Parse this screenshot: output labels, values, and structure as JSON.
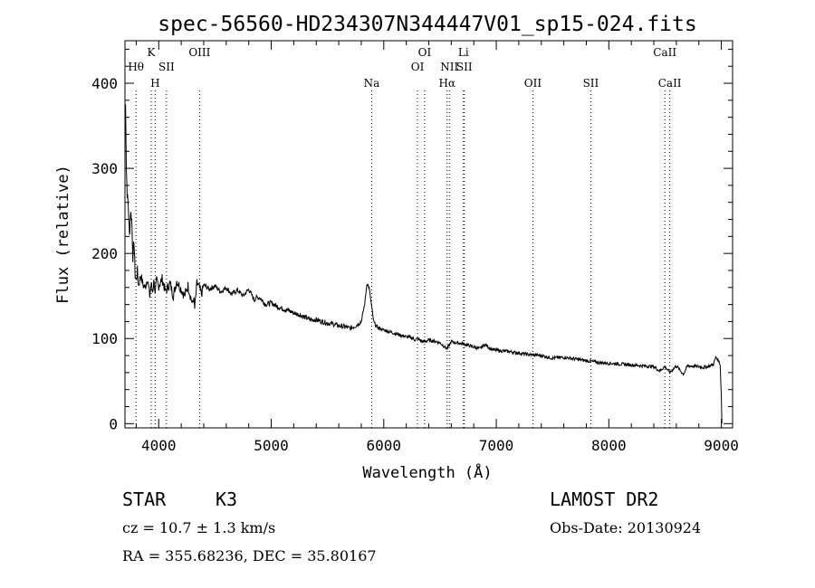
{
  "chart_data": {
    "type": "line",
    "title": "spec-56560-HD234307N344447V01_sp15-024.fits",
    "xlabel": "Wavelength (Å)",
    "ylabel": "Flux (relative)",
    "xlim": [
      3700,
      9100
    ],
    "ylim": [
      -5,
      450
    ],
    "xticks": [
      4000,
      5000,
      6000,
      7000,
      8000,
      9000
    ],
    "yticks": [
      0,
      100,
      200,
      300,
      400
    ],
    "grid": false,
    "series": [
      {
        "x": [
          3700,
          3705,
          3712,
          3720,
          3730,
          3740,
          3750,
          3760,
          3770,
          3780,
          3790,
          3800,
          3810,
          3820,
          3840,
          3860,
          3880,
          3900,
          3920,
          3933,
          3945,
          3960,
          3968,
          3980,
          4000,
          4030,
          4060,
          4100,
          4130,
          4160,
          4200,
          4230,
          4260,
          4300,
          4310,
          4320,
          4340,
          4360,
          4380,
          4400,
          4450,
          4500,
          4550,
          4600,
          4650,
          4700,
          4750,
          4800,
          4850,
          4861,
          4900,
          4950,
          5000,
          5050,
          5100,
          5150,
          5200,
          5250,
          5300,
          5350,
          5400,
          5450,
          5500,
          5550,
          5600,
          5650,
          5700,
          5750,
          5800,
          5830,
          5850,
          5870,
          5890,
          5910,
          5930,
          5960,
          6000,
          6050,
          6100,
          6150,
          6200,
          6250,
          6280,
          6300,
          6350,
          6400,
          6450,
          6500,
          6563,
          6600,
          6650,
          6700,
          6750,
          6800,
          6850,
          6900,
          6950,
          7000,
          7100,
          7200,
          7300,
          7400,
          7500,
          7600,
          7700,
          7800,
          7900,
          8000,
          8100,
          8200,
          8300,
          8400,
          8450,
          8500,
          8542,
          8600,
          8662,
          8700,
          8800,
          8850,
          8900,
          8930,
          8950,
          8970,
          8990,
          9000,
          9005
        ],
        "values": [
          355,
          380,
          300,
          270,
          255,
          220,
          250,
          240,
          195,
          215,
          175,
          168,
          180,
          162,
          175,
          163,
          160,
          172,
          150,
          165,
          155,
          170,
          150,
          168,
          162,
          170,
          155,
          165,
          150,
          168,
          158,
          150,
          162,
          140,
          148,
          135,
          165,
          160,
          152,
          163,
          158,
          162,
          155,
          160,
          152,
          157,
          150,
          158,
          145,
          148,
          148,
          140,
          142,
          138,
          135,
          133,
          130,
          128,
          125,
          122,
          122,
          120,
          118,
          117,
          115,
          114,
          112,
          115,
          120,
          140,
          165,
          160,
          140,
          120,
          115,
          112,
          110,
          108,
          106,
          104,
          102,
          101,
          98,
          100,
          96,
          98,
          97,
          95,
          88,
          96,
          95,
          94,
          92,
          90,
          88,
          93,
          88,
          86,
          85,
          83,
          81,
          80,
          77,
          78,
          76,
          74,
          72,
          71,
          70,
          69,
          68,
          67,
          62,
          67,
          60,
          68,
          58,
          68,
          67,
          66,
          68,
          70,
          78,
          75,
          70,
          30,
          0
        ]
      }
    ],
    "lines": [
      {
        "label": "Hθ",
        "x": 3798,
        "row": 1
      },
      {
        "label": "K",
        "x": 3933,
        "row": 0
      },
      {
        "label": "H",
        "x": 3968,
        "row": 2
      },
      {
        "label": "SII",
        "x": 4069,
        "row": 1
      },
      {
        "label": "OIII",
        "x": 4363,
        "row": 0
      },
      {
        "label": "Na",
        "x": 5893,
        "row": 2
      },
      {
        "label": "OI",
        "x": 6300,
        "row": 1
      },
      {
        "label": "OI",
        "x": 6363,
        "row": 0
      },
      {
        "label": "Hα",
        "x": 6563,
        "row": 2
      },
      {
        "label": "NII",
        "x": 6583,
        "row": 1
      },
      {
        "label": "Li",
        "x": 6708,
        "row": 0
      },
      {
        "label": "SII",
        "x": 6716,
        "row": 1
      },
      {
        "label": "OII",
        "x": 7325,
        "row": 2
      },
      {
        "label": "SII",
        "x": 7840,
        "row": 2
      },
      {
        "label": "CaII",
        "x": 8498,
        "row": 0
      },
      {
        "label": "CaII",
        "x": 8542,
        "row": 2
      }
    ]
  },
  "info": {
    "object_class": "STAR",
    "subclass": "K3",
    "survey": "LAMOST DR2",
    "cz": "cz = 10.7 ± 1.3 km/s",
    "obs_date": "Obs-Date: 20130924",
    "coords": "RA = 355.68236, DEC =  35.80167"
  }
}
